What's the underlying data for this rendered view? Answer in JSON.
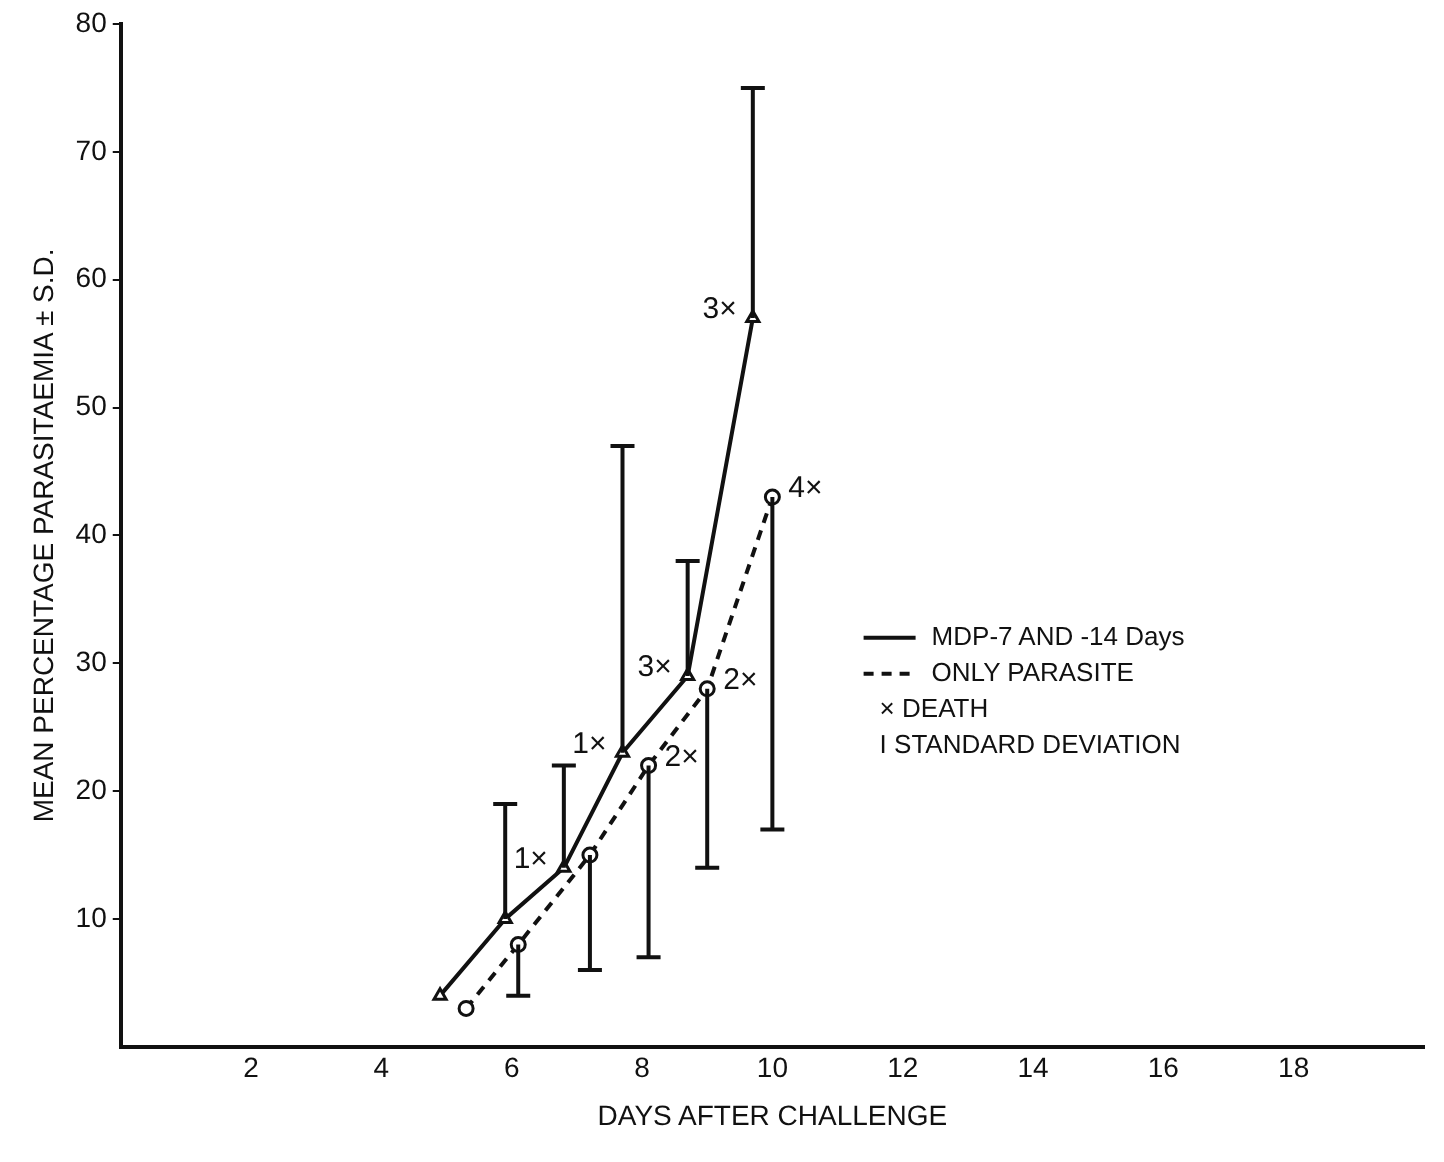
{
  "chart_data": {
    "type": "line",
    "xlabel": "DAYS AFTER CHALLENGE",
    "ylabel": "MEAN PERCENTAGE PARASITAEMIA ± S.D.",
    "xlim": [
      0,
      20
    ],
    "xticks": [
      2,
      4,
      6,
      8,
      10,
      12,
      14,
      16,
      18
    ],
    "ylim": [
      0,
      80
    ],
    "yticks": [
      10,
      20,
      30,
      40,
      50,
      60,
      70,
      80
    ],
    "grid": false,
    "legend": "right",
    "series": [
      {
        "name": "MDP-7 AND -14 Days",
        "color": "#111111",
        "marker": "triangle",
        "line_style": "solid",
        "x": [
          4.9,
          5.9,
          6.8,
          7.7,
          8.7,
          9.7
        ],
        "values": [
          4,
          10,
          14,
          23,
          29,
          57
        ],
        "errors": [
          null,
          [
            10,
            19
          ],
          [
            14,
            22
          ],
          [
            23,
            47
          ],
          [
            29,
            38
          ],
          [
            57,
            75
          ]
        ]
      },
      {
        "name": "ONLY PARASITE",
        "color": "#111111",
        "marker": "circle",
        "line_style": "dashed",
        "x": [
          5.3,
          6.1,
          7.2,
          8.1,
          9.0,
          10.0
        ],
        "values": [
          3,
          8,
          15,
          22,
          28,
          43
        ],
        "errors": [
          null,
          [
            4,
            8
          ],
          [
            6,
            15
          ],
          [
            7,
            22
          ],
          [
            14,
            28
          ],
          [
            17,
            43
          ]
        ]
      }
    ],
    "annotations": [
      {
        "text": "1×",
        "x": 6.8,
        "y": 14
      },
      {
        "text": "1×",
        "x": 7.7,
        "y": 23
      },
      {
        "text": "3×",
        "x": 8.7,
        "y": 29
      },
      {
        "text": "3×",
        "x": 9.7,
        "y": 57
      },
      {
        "text": "2×",
        "x": 8.1,
        "y": 22
      },
      {
        "text": "2×",
        "x": 9.0,
        "y": 28
      },
      {
        "text": "4×",
        "x": 10.0,
        "y": 43
      },
      "× DEATH",
      "I STANDARD DEVIATION"
    ]
  }
}
